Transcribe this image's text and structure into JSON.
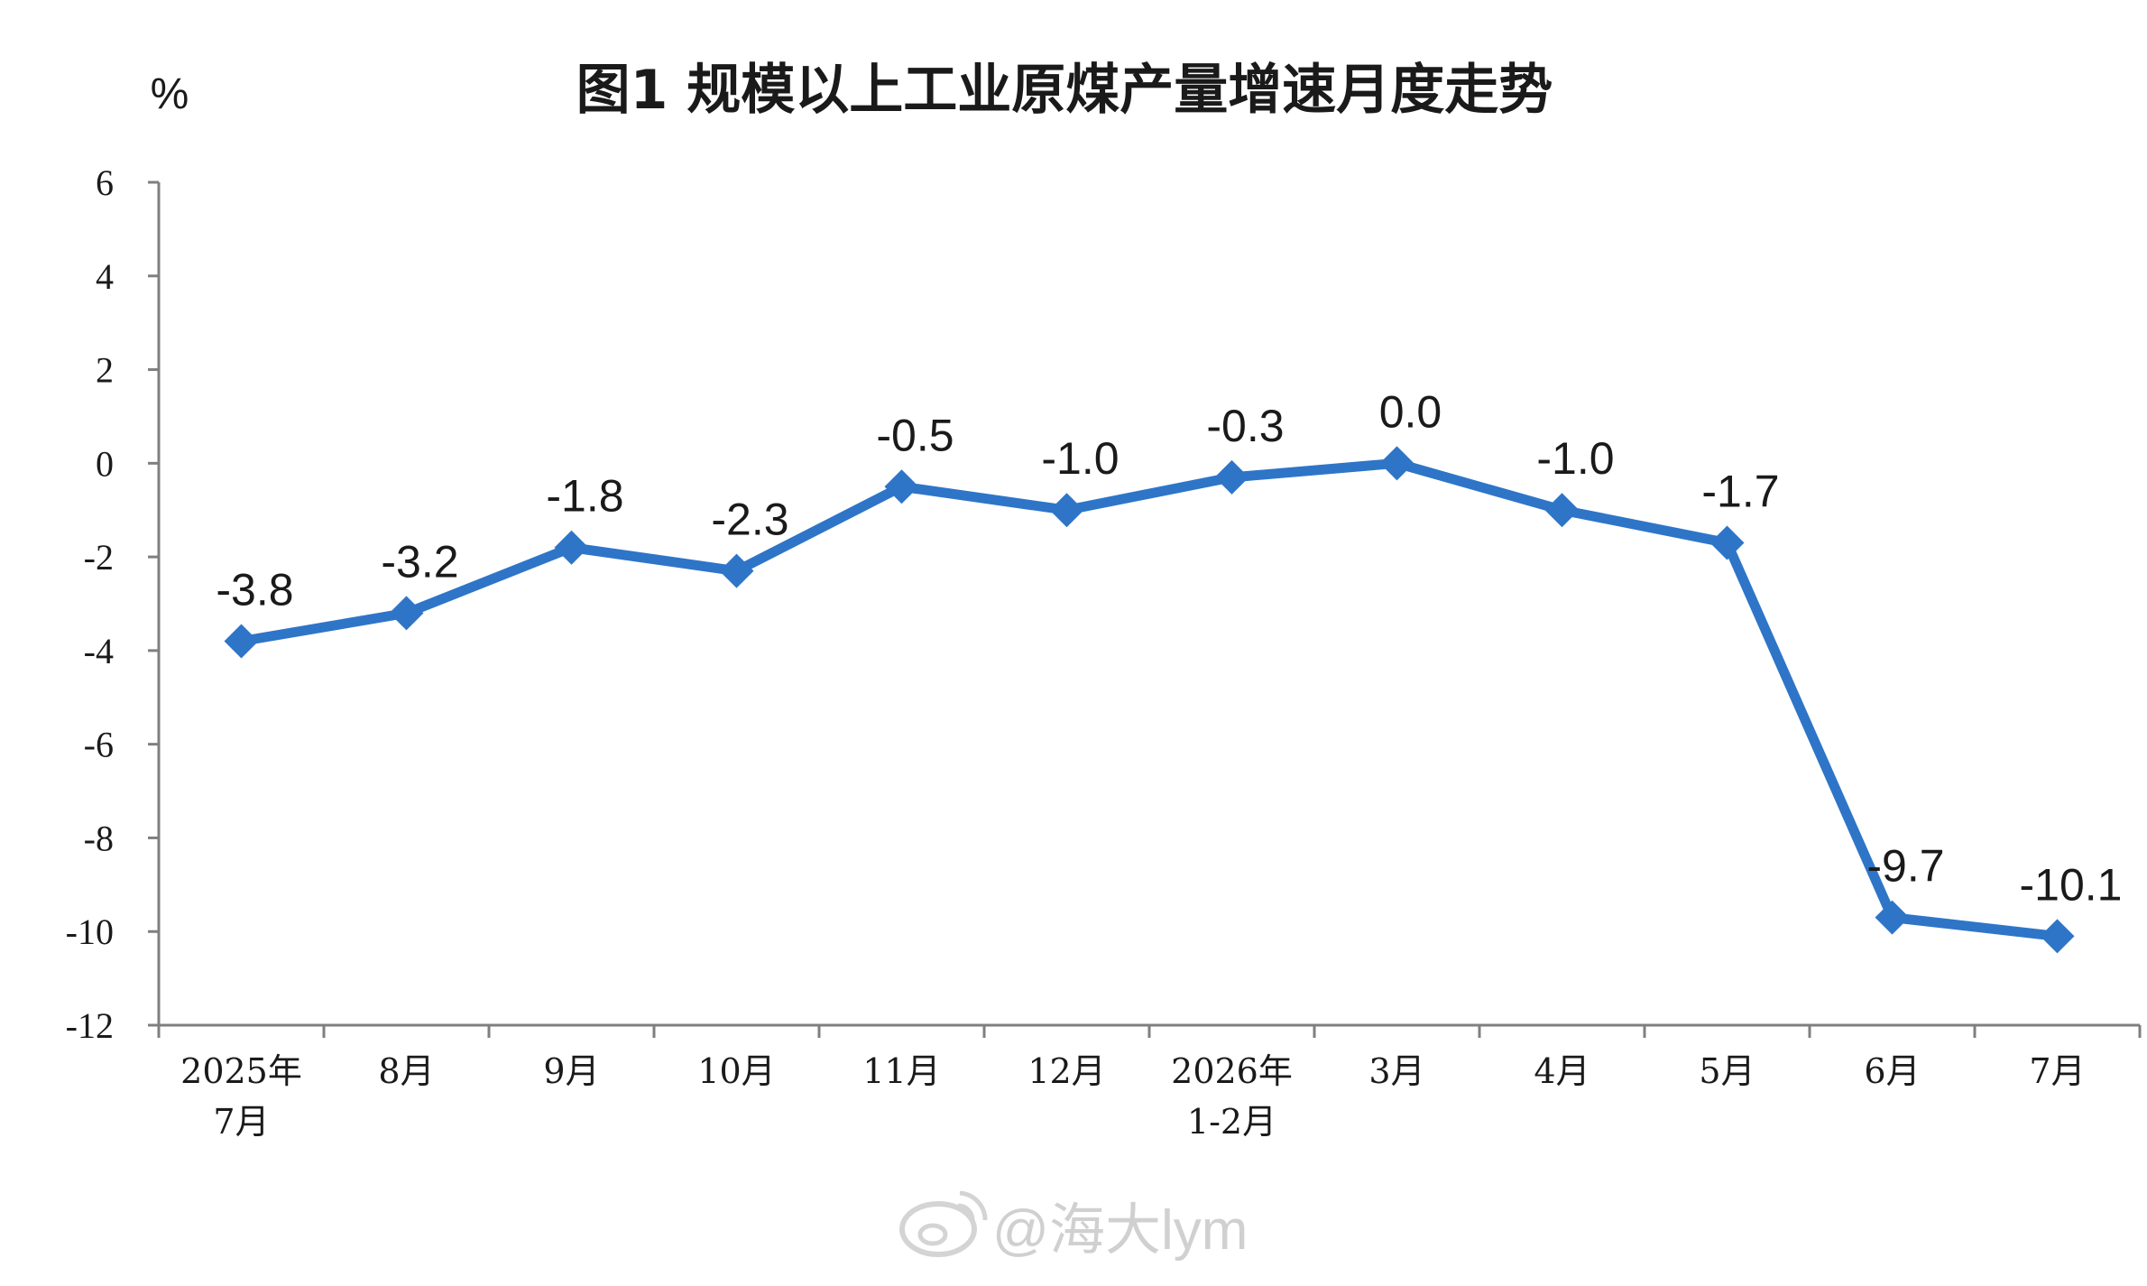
{
  "chart_data": {
    "type": "line",
    "title": "图1  规模以上工业原煤产量增速月度走势",
    "ylabel": "%",
    "xlabel": "",
    "ylim": [
      -12,
      6
    ],
    "yticks": [
      6,
      4,
      2,
      0,
      -2,
      -4,
      -6,
      -8,
      -10,
      -12
    ],
    "categories": [
      [
        "2025年",
        "7月"
      ],
      [
        "8月"
      ],
      [
        "9月"
      ],
      [
        "10月"
      ],
      [
        "11月"
      ],
      [
        "12月"
      ],
      [
        "2026年",
        "1-2月"
      ],
      [
        "3月"
      ],
      [
        "4月"
      ],
      [
        "5月"
      ],
      [
        "6月"
      ],
      [
        "7月"
      ]
    ],
    "series": [
      {
        "values": [
          -3.8,
          -3.2,
          -1.8,
          -2.3,
          -0.5,
          -1.0,
          -0.3,
          0.0,
          -1.0,
          -1.7,
          -9.7,
          -10.1
        ],
        "labels": [
          "-3.8",
          "-3.2",
          "-1.8",
          "-2.3",
          "-0.5",
          "-1.0",
          "-0.3",
          "0.0",
          "-1.0",
          "-1.7",
          "-9.7",
          "-10.1"
        ],
        "color": "#2e75c8",
        "marker": "diamond"
      }
    ],
    "grid": false,
    "legend": "none"
  },
  "watermark": {
    "text": "@海大lym",
    "icon": "weibo-icon"
  }
}
